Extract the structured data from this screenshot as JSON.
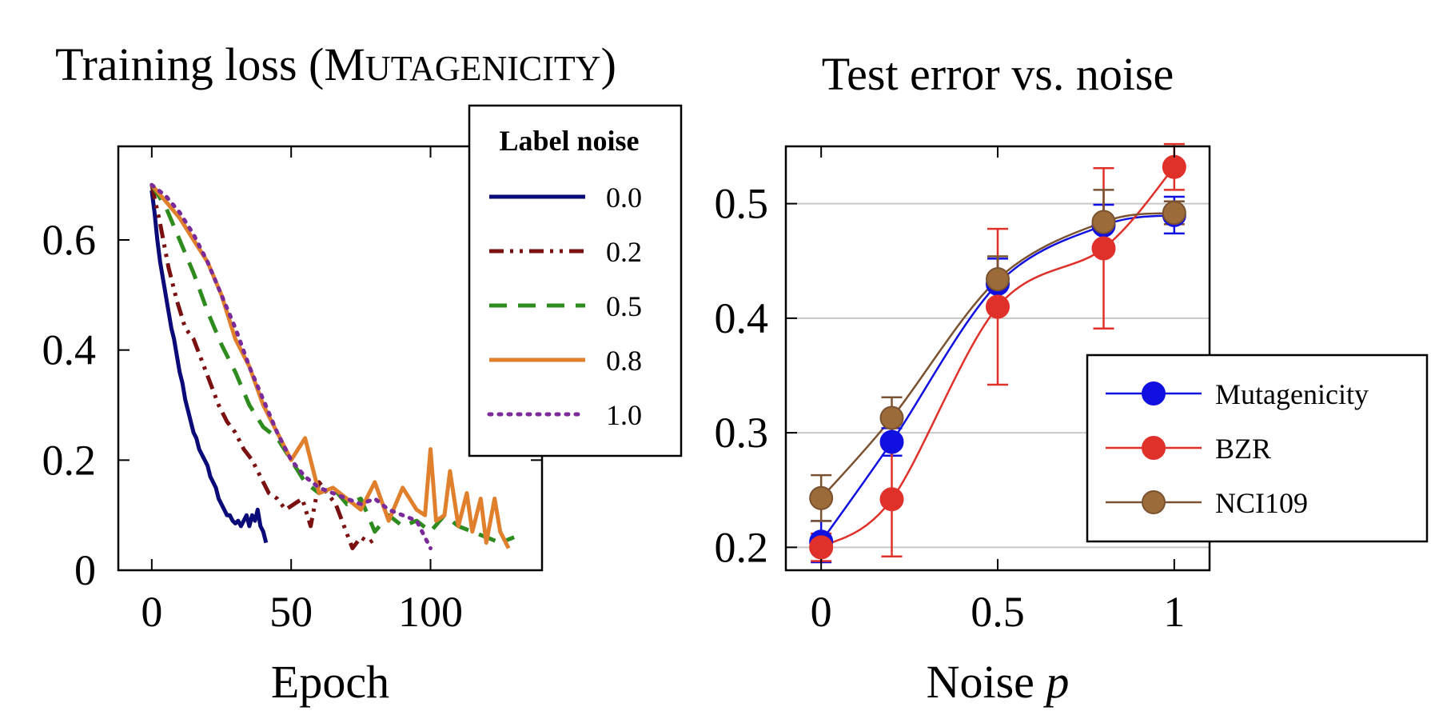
{
  "chart_data": [
    {
      "type": "line",
      "title_prefix": "Training loss (",
      "title_cap_initial": "M",
      "title_smallcaps": "UTAGENICITY",
      "title_suffix": ")",
      "xlabel": "Epoch",
      "ylabel": "",
      "xlim": [
        -12,
        140
      ],
      "ylim": [
        0,
        0.77
      ],
      "xticks": [
        0,
        50,
        100
      ],
      "xtick_labels": [
        "0",
        "50",
        "100"
      ],
      "yticks": [
        0,
        0.2,
        0.4,
        0.6
      ],
      "ytick_labels": [
        "0",
        "0.2",
        "0.4",
        "0.6"
      ],
      "legend_title": "Label noise",
      "series": [
        {
          "name": "0.0",
          "color": "#0a0a78",
          "dash": "solid",
          "x": [
            0,
            1,
            2,
            3,
            4,
            5,
            6,
            7,
            8,
            9,
            10,
            11,
            12,
            13,
            14,
            15,
            16,
            17,
            18,
            19,
            20,
            21,
            22,
            23,
            24,
            25,
            26,
            27,
            28,
            29,
            30,
            31,
            32,
            33,
            34,
            35,
            36,
            37,
            38,
            39,
            40,
            41
          ],
          "y": [
            0.69,
            0.65,
            0.6,
            0.56,
            0.53,
            0.5,
            0.47,
            0.44,
            0.42,
            0.39,
            0.36,
            0.34,
            0.31,
            0.29,
            0.27,
            0.25,
            0.24,
            0.22,
            0.21,
            0.2,
            0.19,
            0.17,
            0.16,
            0.15,
            0.13,
            0.12,
            0.11,
            0.1,
            0.1,
            0.09,
            0.085,
            0.09,
            0.08,
            0.09,
            0.1,
            0.08,
            0.1,
            0.09,
            0.11,
            0.08,
            0.07,
            0.05
          ]
        },
        {
          "name": "0.2",
          "color": "#7a1010",
          "dash": "dashdotdot",
          "x": [
            0,
            3,
            6,
            9,
            12,
            15,
            18,
            21,
            24,
            27,
            30,
            33,
            36,
            39,
            42,
            45,
            48,
            51,
            54,
            57,
            60,
            63,
            66,
            69,
            72,
            75,
            78,
            81
          ],
          "y": [
            0.7,
            0.63,
            0.55,
            0.49,
            0.44,
            0.42,
            0.38,
            0.34,
            0.3,
            0.27,
            0.25,
            0.22,
            0.2,
            0.17,
            0.14,
            0.13,
            0.11,
            0.12,
            0.13,
            0.08,
            0.16,
            0.14,
            0.12,
            0.08,
            0.04,
            0.06,
            0.05,
            0.06
          ]
        },
        {
          "name": "0.5",
          "color": "#2e8b1e",
          "dash": "dashed",
          "x": [
            0,
            5,
            10,
            15,
            20,
            25,
            30,
            35,
            40,
            45,
            50,
            55,
            60,
            65,
            70,
            75,
            80,
            85,
            90,
            95,
            100,
            105,
            110,
            115,
            120,
            125,
            130
          ],
          "y": [
            0.7,
            0.66,
            0.6,
            0.54,
            0.47,
            0.41,
            0.36,
            0.3,
            0.26,
            0.24,
            0.2,
            0.16,
            0.14,
            0.15,
            0.12,
            0.13,
            0.07,
            0.1,
            0.08,
            0.09,
            0.07,
            0.1,
            0.08,
            0.07,
            0.06,
            0.05,
            0.06
          ]
        },
        {
          "name": "0.8",
          "color": "#e07f2c",
          "dash": "solid",
          "x": [
            0,
            5,
            10,
            15,
            20,
            25,
            30,
            35,
            40,
            45,
            50,
            55,
            60,
            65,
            70,
            75,
            80,
            85,
            90,
            95,
            98,
            100,
            102,
            105,
            107,
            110,
            113,
            115,
            118,
            120,
            123,
            125,
            128
          ],
          "y": [
            0.7,
            0.67,
            0.64,
            0.6,
            0.56,
            0.5,
            0.42,
            0.37,
            0.3,
            0.25,
            0.2,
            0.24,
            0.14,
            0.15,
            0.13,
            0.11,
            0.16,
            0.09,
            0.15,
            0.11,
            0.1,
            0.22,
            0.09,
            0.1,
            0.18,
            0.08,
            0.14,
            0.07,
            0.13,
            0.05,
            0.13,
            0.07,
            0.04
          ]
        },
        {
          "name": "1.0",
          "color": "#7b2a9a",
          "dash": "dotted",
          "x": [
            0,
            5,
            10,
            15,
            20,
            25,
            30,
            35,
            40,
            45,
            50,
            55,
            60,
            65,
            70,
            75,
            80,
            85,
            90,
            95,
            100
          ],
          "y": [
            0.7,
            0.68,
            0.65,
            0.61,
            0.56,
            0.5,
            0.44,
            0.37,
            0.31,
            0.25,
            0.2,
            0.17,
            0.15,
            0.14,
            0.13,
            0.12,
            0.13,
            0.11,
            0.1,
            0.09,
            0.04
          ]
        }
      ]
    },
    {
      "type": "line",
      "title": "Test error vs. noise",
      "xlabel_prefix": "Noise ",
      "xlabel_var": "p",
      "ylabel": "",
      "xlim": [
        -0.1,
        1.1
      ],
      "ylim": [
        0.18,
        0.55
      ],
      "xticks": [
        0,
        0.5,
        1
      ],
      "xtick_labels": [
        "0",
        "0.5",
        "1"
      ],
      "yticks": [
        0.2,
        0.3,
        0.4,
        0.5
      ],
      "ytick_labels": [
        "0.2",
        "0.3",
        "0.4",
        "0.5"
      ],
      "grid": true,
      "legend_position": "bottom-right",
      "series": [
        {
          "name": "Mutagenicity",
          "color": "#1010e0",
          "marker_color": "#1010e0",
          "x": [
            0,
            0.2,
            0.5,
            0.8,
            1.0
          ],
          "y": [
            0.205,
            0.292,
            0.43,
            0.481,
            0.49
          ],
          "err": [
            0.018,
            0.012,
            0.022,
            0.018,
            0.016
          ]
        },
        {
          "name": "BZR",
          "color": "#e0302a",
          "marker_color": "#e0302a",
          "x": [
            0,
            0.2,
            0.5,
            0.8,
            1.0
          ],
          "y": [
            0.2,
            0.242,
            0.41,
            0.461,
            0.532
          ],
          "err": [
            0.012,
            0.05,
            0.068,
            0.07,
            0.02
          ]
        },
        {
          "name": "NCI109",
          "color": "#7a5230",
          "marker_color": "#9c6b3a",
          "x": [
            0,
            0.2,
            0.5,
            0.8,
            1.0
          ],
          "y": [
            0.243,
            0.313,
            0.434,
            0.484,
            0.492
          ],
          "err": [
            0.02,
            0.018,
            0.02,
            0.028,
            0.01
          ]
        }
      ]
    }
  ]
}
